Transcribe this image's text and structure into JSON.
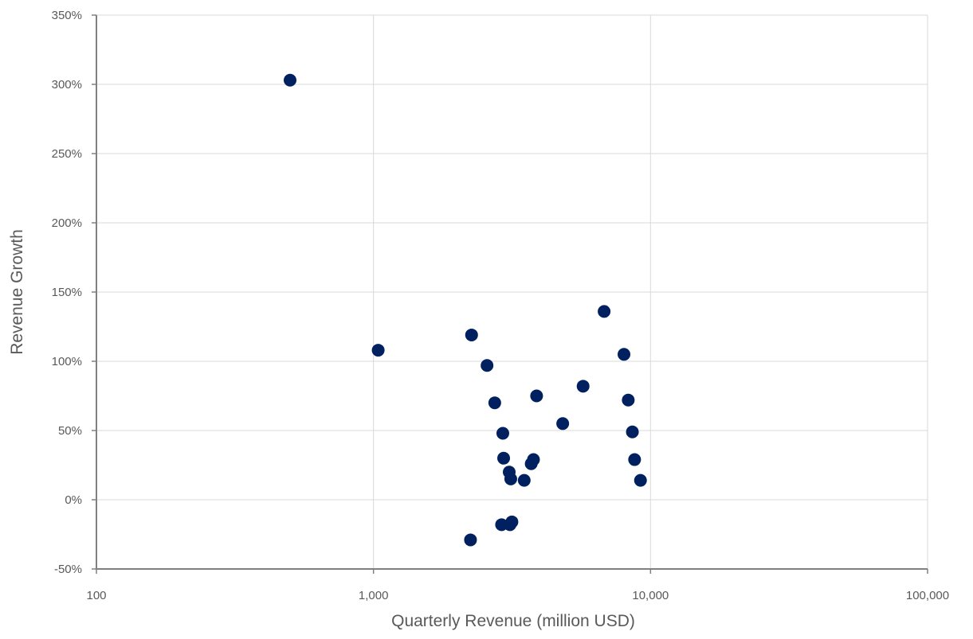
{
  "chart_data": {
    "type": "scatter",
    "title": "",
    "xlabel": "Quarterly Revenue (million USD)",
    "ylabel": "Revenue Growth",
    "x_scale": "log",
    "xlim": [
      100,
      100000
    ],
    "ylim": [
      -50,
      350
    ],
    "x_ticks": [
      {
        "value": 100,
        "label": "100"
      },
      {
        "value": 1000,
        "label": "1,000"
      },
      {
        "value": 10000,
        "label": "10,000"
      },
      {
        "value": 100000,
        "label": "100,000"
      }
    ],
    "y_ticks": [
      {
        "value": -50,
        "label": "-50%"
      },
      {
        "value": 0,
        "label": "0%"
      },
      {
        "value": 50,
        "label": "50%"
      },
      {
        "value": 100,
        "label": "100%"
      },
      {
        "value": 150,
        "label": "150%"
      },
      {
        "value": 200,
        "label": "200%"
      },
      {
        "value": 250,
        "label": "250%"
      },
      {
        "value": 300,
        "label": "300%"
      },
      {
        "value": 350,
        "label": "350%"
      }
    ],
    "grid": true,
    "legend": "none",
    "marker_color": "#002060",
    "series": [
      {
        "points": [
          {
            "x": 500,
            "y": 303
          },
          {
            "x": 1040,
            "y": 108
          },
          {
            "x": 2260,
            "y": 119
          },
          {
            "x": 2240,
            "y": -29
          },
          {
            "x": 2570,
            "y": 97
          },
          {
            "x": 2740,
            "y": 70
          },
          {
            "x": 2930,
            "y": 48
          },
          {
            "x": 2950,
            "y": 30
          },
          {
            "x": 2900,
            "y": -18
          },
          {
            "x": 3090,
            "y": 20
          },
          {
            "x": 3130,
            "y": 15
          },
          {
            "x": 3110,
            "y": -18
          },
          {
            "x": 3160,
            "y": -16
          },
          {
            "x": 3500,
            "y": 14
          },
          {
            "x": 3710,
            "y": 26
          },
          {
            "x": 3780,
            "y": 29
          },
          {
            "x": 3880,
            "y": 75
          },
          {
            "x": 4820,
            "y": 55
          },
          {
            "x": 5710,
            "y": 82
          },
          {
            "x": 6800,
            "y": 136
          },
          {
            "x": 8020,
            "y": 105
          },
          {
            "x": 8310,
            "y": 72
          },
          {
            "x": 8600,
            "y": 49
          },
          {
            "x": 8760,
            "y": 29
          },
          {
            "x": 9200,
            "y": 14
          }
        ]
      }
    ]
  }
}
